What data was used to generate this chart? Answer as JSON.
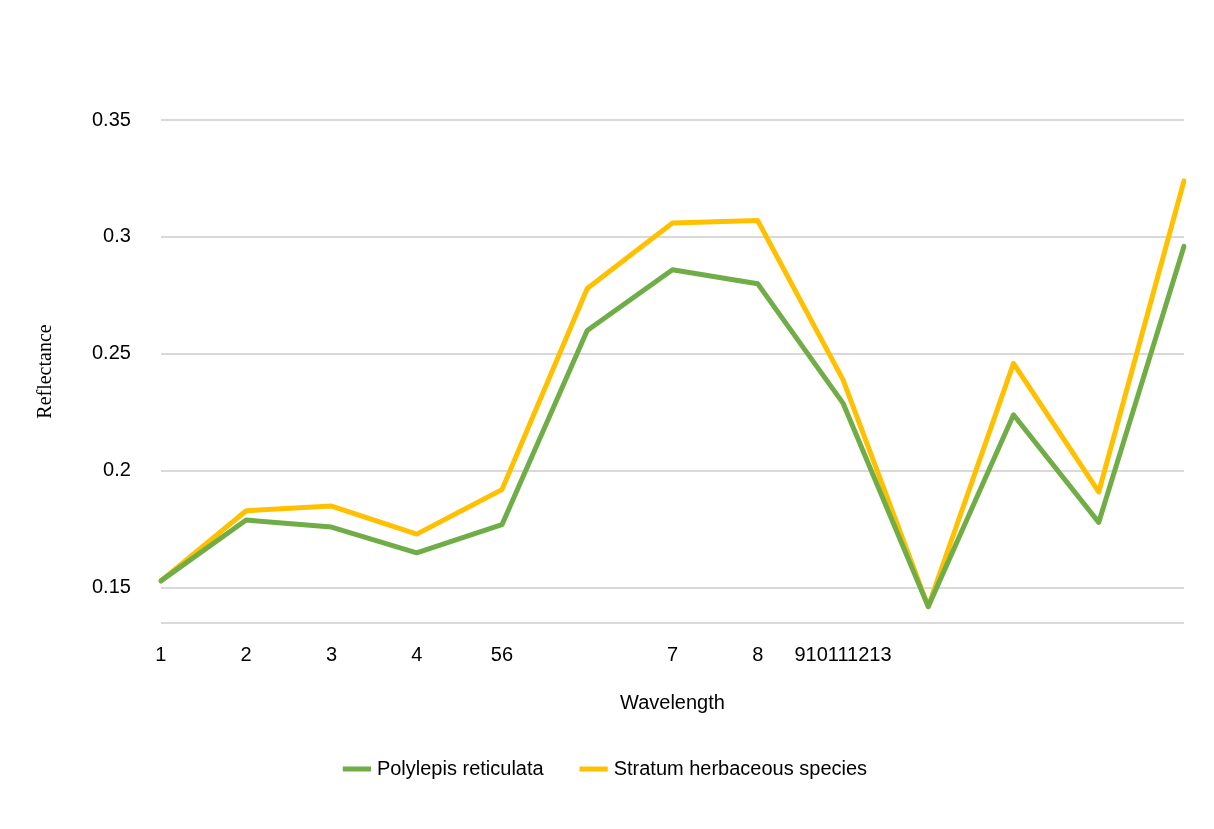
{
  "chart_data": {
    "type": "line",
    "xlabel": "Wavelength",
    "ylabel": "Reflectance",
    "categories": [
      "1",
      "2",
      "3",
      "4",
      "56",
      null,
      "7",
      "8",
      "910111213",
      null,
      null,
      null,
      null
    ],
    "series": [
      {
        "name": "Polylepis reticulata",
        "color": "#70ad47",
        "values": [
          0.153,
          0.179,
          0.176,
          0.165,
          0.177,
          0.26,
          0.286,
          0.28,
          0.229,
          0.142,
          0.224,
          0.178,
          0.296
        ]
      },
      {
        "name": "Stratum herbaceous species",
        "color": "#ffc000",
        "values": [
          0.153,
          0.183,
          0.185,
          0.173,
          0.192,
          0.278,
          0.306,
          0.307,
          0.239,
          0.142,
          0.246,
          0.191,
          0.324
        ]
      }
    ],
    "ylim": [
      0.135,
      0.35
    ],
    "yticks": [
      {
        "value": 0.135,
        "label": null
      },
      0.15,
      0.2,
      0.25,
      0.3,
      0.35
    ],
    "grid": "y",
    "legend": "bottom",
    "marker": "none",
    "line_style": "solid"
  }
}
